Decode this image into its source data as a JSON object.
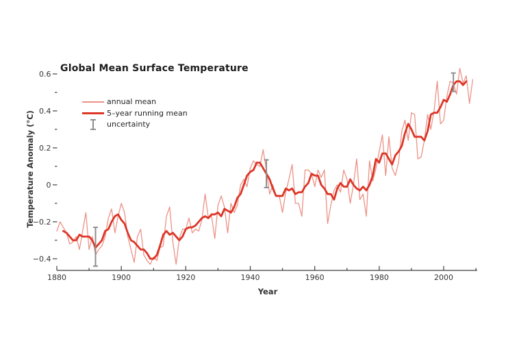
{
  "figure": {
    "title": "Global Mean Surface Temperature",
    "x_axis_label": "Year",
    "y_axis_label": "Temperature Anomaly (°C)",
    "legend": {
      "annual": "annual mean",
      "running": "5–year running mean",
      "uncertainty": "uncertainty"
    }
  },
  "colors": {
    "annual_line": "#EC9186",
    "running_line": "#DC3526",
    "uncertainty_bar": "#8E8E8E",
    "axis_line": "#3D3D3D",
    "axis_text": "#333333",
    "background": "#FFFFFF"
  },
  "chart_data": {
    "type": "line",
    "title": "Global Mean Surface Temperature",
    "xlabel": "Year",
    "ylabel": "Temperature Anomaly (°C)",
    "xlim": [
      1880,
      2010
    ],
    "ylim": [
      -0.47,
      0.63
    ],
    "grid": false,
    "legend_position": "upper-left",
    "x_ticks_major": [
      1880,
      1900,
      1920,
      1940,
      1960,
      1980,
      2000
    ],
    "x_ticks_minor": [
      1890,
      1910,
      1930,
      1950,
      1970,
      1990,
      2010
    ],
    "y_ticks_major": [
      -0.4,
      -0.2,
      0,
      0.2,
      0.4,
      0.6
    ],
    "y_ticks_minor": [
      -0.3,
      -0.1,
      0.1,
      0.3,
      0.5
    ],
    "series": [
      {
        "name": "annual mean",
        "start_year": 1880,
        "end_year": 2009,
        "values": [
          -0.25,
          -0.2,
          -0.23,
          -0.26,
          -0.32,
          -0.31,
          -0.28,
          -0.35,
          -0.25,
          -0.15,
          -0.35,
          -0.28,
          -0.38,
          -0.35,
          -0.33,
          -0.28,
          -0.18,
          -0.13,
          -0.26,
          -0.17,
          -0.1,
          -0.15,
          -0.28,
          -0.35,
          -0.42,
          -0.28,
          -0.24,
          -0.38,
          -0.41,
          -0.43,
          -0.39,
          -0.41,
          -0.34,
          -0.33,
          -0.17,
          -0.12,
          -0.31,
          -0.43,
          -0.29,
          -0.24,
          -0.24,
          -0.18,
          -0.26,
          -0.24,
          -0.25,
          -0.19,
          -0.05,
          -0.18,
          -0.17,
          -0.29,
          -0.11,
          -0.06,
          -0.12,
          -0.26,
          -0.1,
          -0.15,
          -0.11,
          0.0,
          0.03,
          -0.01,
          0.09,
          0.13,
          0.11,
          0.1,
          0.19,
          0.08,
          -0.05,
          0.0,
          -0.06,
          -0.06,
          -0.15,
          -0.04,
          0.03,
          0.11,
          -0.1,
          -0.1,
          -0.17,
          0.08,
          0.08,
          0.06,
          -0.01,
          0.08,
          0.04,
          0.08,
          -0.21,
          -0.11,
          -0.03,
          0.0,
          -0.04,
          0.08,
          0.03,
          -0.1,
          0.0,
          0.14,
          -0.08,
          -0.05,
          -0.17,
          0.13,
          0.02,
          0.09,
          0.18,
          0.27,
          0.05,
          0.26,
          0.09,
          0.05,
          0.12,
          0.29,
          0.35,
          0.24,
          0.39,
          0.38,
          0.14,
          0.15,
          0.24,
          0.38,
          0.3,
          0.4,
          0.56,
          0.33,
          0.35,
          0.48,
          0.56,
          0.55,
          0.49,
          0.63,
          0.55,
          0.59,
          0.44,
          0.57
        ]
      },
      {
        "name": "5–year running mean",
        "start_year": 1882,
        "end_year": 2007,
        "values": [
          -0.25,
          -0.26,
          -0.28,
          -0.3,
          -0.3,
          -0.27,
          -0.28,
          -0.28,
          -0.28,
          -0.3,
          -0.34,
          -0.32,
          -0.3,
          -0.25,
          -0.24,
          -0.2,
          -0.17,
          -0.16,
          -0.19,
          -0.21,
          -0.26,
          -0.3,
          -0.31,
          -0.33,
          -0.35,
          -0.35,
          -0.37,
          -0.4,
          -0.4,
          -0.38,
          -0.33,
          -0.27,
          -0.25,
          -0.27,
          -0.26,
          -0.28,
          -0.3,
          -0.28,
          -0.24,
          -0.23,
          -0.23,
          -0.22,
          -0.2,
          -0.18,
          -0.17,
          -0.18,
          -0.16,
          -0.16,
          -0.15,
          -0.17,
          -0.13,
          -0.14,
          -0.15,
          -0.12,
          -0.07,
          -0.05,
          0.0,
          0.05,
          0.07,
          0.08,
          0.12,
          0.12,
          0.09,
          0.06,
          0.03,
          -0.02,
          -0.06,
          -0.06,
          -0.06,
          -0.02,
          -0.03,
          -0.02,
          -0.05,
          -0.04,
          -0.04,
          -0.01,
          0.01,
          0.06,
          0.05,
          0.05,
          0.0,
          -0.02,
          -0.05,
          -0.05,
          -0.08,
          -0.02,
          0.01,
          -0.01,
          -0.01,
          0.03,
          0.0,
          -0.02,
          -0.03,
          -0.01,
          -0.03,
          0.0,
          0.05,
          0.14,
          0.12,
          0.17,
          0.17,
          0.14,
          0.11,
          0.16,
          0.18,
          0.21,
          0.28,
          0.33,
          0.3,
          0.26,
          0.26,
          0.26,
          0.24,
          0.29,
          0.38,
          0.39,
          0.39,
          0.42,
          0.46,
          0.45,
          0.49,
          0.54,
          0.56,
          0.56,
          0.54,
          0.56
        ]
      }
    ],
    "uncertainty_bars": [
      {
        "year": 1892,
        "value": -0.335,
        "half_range": 0.105
      },
      {
        "year": 1945,
        "value": 0.06,
        "half_range": 0.075
      },
      {
        "year": 2003,
        "value": 0.555,
        "half_range": 0.05
      }
    ]
  }
}
